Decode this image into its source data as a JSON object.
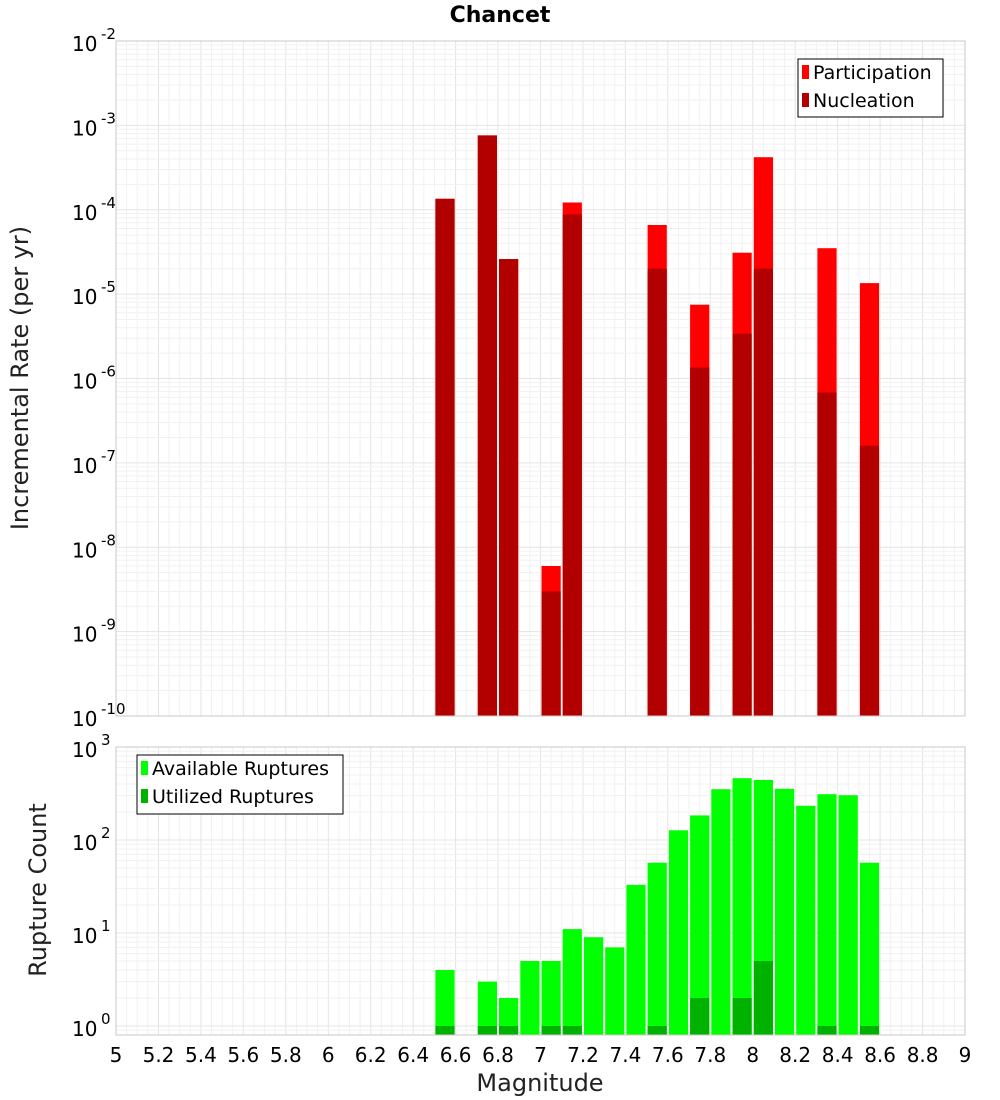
{
  "chart_data": [
    {
      "type": "bar",
      "title": "Chancet",
      "xlabel": "",
      "ylabel": "Incremental Rate (per yr)",
      "yscale": "log",
      "ylim": [
        1e-10,
        0.01
      ],
      "xlim": [
        5,
        9
      ],
      "bar_width": 0.1,
      "legend_position": "top-right",
      "y_tick_exponents": [
        "-10",
        "-9",
        "-8",
        "-7",
        "-6",
        "-5",
        "-4",
        "-3",
        "-2"
      ],
      "series": [
        {
          "name": "Participation",
          "color": "#ff0000",
          "points": [
            {
              "x": 6.55,
              "y": 0.000135
            },
            {
              "x": 6.75,
              "y": 0.00076
            },
            {
              "x": 6.85,
              "y": 2.6e-05
            },
            {
              "x": 7.05,
              "y": 6e-09
            },
            {
              "x": 7.15,
              "y": 0.000122
            },
            {
              "x": 7.55,
              "y": 6.6e-05
            },
            {
              "x": 7.75,
              "y": 7.5e-06
            },
            {
              "x": 7.95,
              "y": 3.1e-05
            },
            {
              "x": 8.05,
              "y": 0.00042
            },
            {
              "x": 8.35,
              "y": 3.5e-05
            },
            {
              "x": 8.55,
              "y": 1.35e-05
            }
          ]
        },
        {
          "name": "Nucleation",
          "color": "#b20000",
          "points": [
            {
              "x": 6.55,
              "y": 0.000135
            },
            {
              "x": 6.75,
              "y": 0.00076
            },
            {
              "x": 6.85,
              "y": 2.6e-05
            },
            {
              "x": 7.05,
              "y": 3e-09
            },
            {
              "x": 7.15,
              "y": 8.8e-05
            },
            {
              "x": 7.55,
              "y": 2e-05
            },
            {
              "x": 7.75,
              "y": 1.35e-06
            },
            {
              "x": 7.95,
              "y": 3.4e-06
            },
            {
              "x": 8.05,
              "y": 2e-05
            },
            {
              "x": 8.35,
              "y": 6.8e-07
            },
            {
              "x": 8.55,
              "y": 1.6e-07
            }
          ]
        }
      ]
    },
    {
      "type": "bar",
      "title": "",
      "xlabel": "Magnitude",
      "ylabel": "Rupture Count",
      "yscale": "log",
      "ylim": [
        0.8,
        1000
      ],
      "xlim": [
        5,
        9
      ],
      "bar_width": 0.1,
      "legend_position": "top-left",
      "y_tick_exponents": [
        "0",
        "1",
        "2",
        "3"
      ],
      "x_tick_labels": [
        "5",
        "5.2",
        "5.4",
        "5.6",
        "5.8",
        "6",
        "6.2",
        "6.4",
        "6.6",
        "6.8",
        "7",
        "7.2",
        "7.4",
        "7.6",
        "7.8",
        "8",
        "8.2",
        "8.4",
        "8.6",
        "8.8",
        "9"
      ],
      "series": [
        {
          "name": "Available Ruptures",
          "color": "#00ff00",
          "points": [
            {
              "x": 6.55,
              "y": 4
            },
            {
              "x": 6.75,
              "y": 3
            },
            {
              "x": 6.85,
              "y": 2
            },
            {
              "x": 6.95,
              "y": 5
            },
            {
              "x": 7.05,
              "y": 5
            },
            {
              "x": 7.15,
              "y": 11
            },
            {
              "x": 7.25,
              "y": 9
            },
            {
              "x": 7.35,
              "y": 7
            },
            {
              "x": 7.45,
              "y": 33
            },
            {
              "x": 7.55,
              "y": 57
            },
            {
              "x": 7.65,
              "y": 127
            },
            {
              "x": 7.75,
              "y": 184
            },
            {
              "x": 7.85,
              "y": 352
            },
            {
              "x": 7.95,
              "y": 462
            },
            {
              "x": 8.05,
              "y": 442
            },
            {
              "x": 8.15,
              "y": 355
            },
            {
              "x": 8.25,
              "y": 233
            },
            {
              "x": 8.35,
              "y": 311
            },
            {
              "x": 8.45,
              "y": 303
            },
            {
              "x": 8.55,
              "y": 57
            }
          ]
        },
        {
          "name": "Utilized Ruptures",
          "color": "#00b200",
          "points": [
            {
              "x": 6.55,
              "y": 1
            },
            {
              "x": 6.75,
              "y": 1
            },
            {
              "x": 6.85,
              "y": 1
            },
            {
              "x": 7.05,
              "y": 1
            },
            {
              "x": 7.15,
              "y": 1
            },
            {
              "x": 7.55,
              "y": 1
            },
            {
              "x": 7.75,
              "y": 2
            },
            {
              "x": 7.95,
              "y": 2
            },
            {
              "x": 8.05,
              "y": 5
            },
            {
              "x": 8.35,
              "y": 1
            },
            {
              "x": 8.55,
              "y": 1
            }
          ]
        }
      ]
    }
  ]
}
